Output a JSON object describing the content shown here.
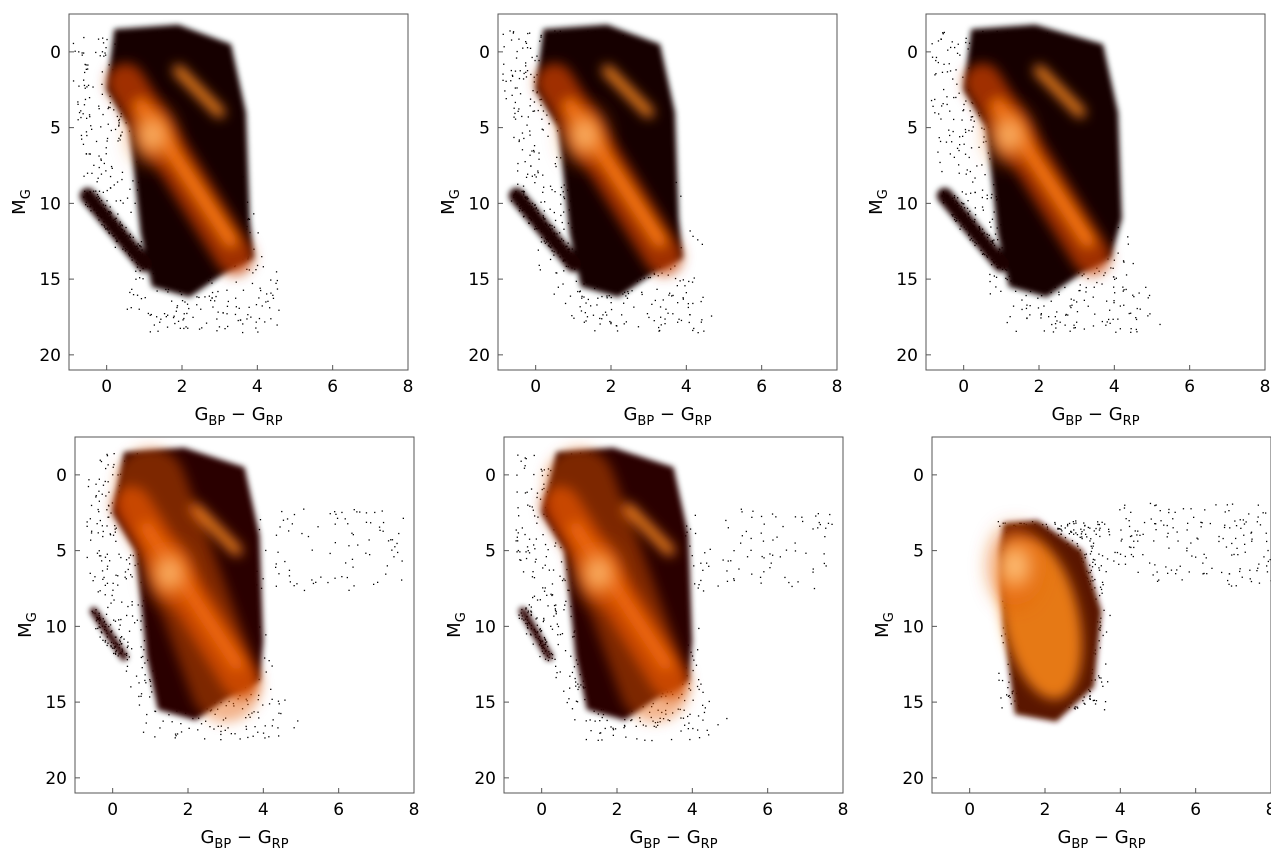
{
  "figure": {
    "background": "#ffffff",
    "colormap": "gist_heat (dark red-orange to white, density scale)",
    "point_color": "#000000"
  },
  "chart_data": [
    {
      "type": "heatmap",
      "row": 1,
      "col": 1,
      "title": "",
      "xlabel": "G_BP − G_RP",
      "xlabel_main": "G",
      "xlabel_sub1": "BP",
      "xlabel_mid": " − G",
      "xlabel_sub2": "RP",
      "ylabel": "M_G",
      "ylabel_main": "M",
      "ylabel_sub": "G",
      "xlim": [
        -1,
        8
      ],
      "ylim": [
        21,
        -2.5
      ],
      "y_inverted": true,
      "xticks": [
        0,
        2,
        4,
        6,
        8
      ],
      "yticks": [
        0,
        5,
        10,
        15,
        20
      ],
      "grid": false,
      "density_features": {
        "main_sequence": {
          "x": [
            0.2,
            3.6
          ],
          "y": [
            0,
            15
          ]
        },
        "red_clump": {
          "x": 2.0,
          "y": 1.5
        },
        "white_dwarf_sequence": {
          "x": [
            -0.5,
            1.0
          ],
          "y": [
            9.5,
            14
          ]
        },
        "peak": {
          "x": 1.2,
          "y": 5.5
        },
        "x_extent": [
          -0.9,
          4.6
        ],
        "y_extent": [
          -2,
          20.5
        ]
      }
    },
    {
      "type": "heatmap",
      "row": 1,
      "col": 2,
      "title": "",
      "xlabel": "G_BP − G_RP",
      "xlabel_main": "G",
      "xlabel_sub1": "BP",
      "xlabel_mid": " − G",
      "xlabel_sub2": "RP",
      "ylabel": "M_G",
      "ylabel_main": "M",
      "ylabel_sub": "G",
      "xlim": [
        -1,
        8
      ],
      "ylim": [
        21,
        -2.5
      ],
      "y_inverted": true,
      "xticks": [
        0,
        2,
        4,
        6,
        8
      ],
      "yticks": [
        0,
        5,
        10,
        15,
        20
      ],
      "grid": false,
      "density_features": {
        "main_sequence": {
          "x": [
            0.2,
            3.6
          ],
          "y": [
            0,
            15
          ]
        },
        "red_clump": {
          "x": 2.0,
          "y": 1.5
        },
        "white_dwarf_sequence": {
          "x": [
            -0.5,
            1.0
          ],
          "y": [
            9.5,
            14
          ]
        },
        "peak": {
          "x": 1.3,
          "y": 5.5
        },
        "x_extent": [
          -0.9,
          4.7
        ],
        "y_extent": [
          -2,
          20.5
        ]
      }
    },
    {
      "type": "heatmap",
      "row": 1,
      "col": 3,
      "title": "",
      "xlabel": "G_BP − G_RP",
      "xlabel_main": "G",
      "xlabel_sub1": "BP",
      "xlabel_mid": " − G",
      "xlabel_sub2": "RP",
      "ylabel": "M_G",
      "ylabel_main": "M",
      "ylabel_sub": "G",
      "xlim": [
        -1,
        8
      ],
      "ylim": [
        21,
        -2.5
      ],
      "y_inverted": true,
      "xticks": [
        0,
        2,
        4,
        6,
        8
      ],
      "yticks": [
        0,
        5,
        10,
        15,
        20
      ],
      "grid": false,
      "density_features": {
        "main_sequence": {
          "x": [
            0.2,
            4.0
          ],
          "y": [
            0,
            15
          ]
        },
        "red_clump": {
          "x": 2.1,
          "y": 1.5
        },
        "white_dwarf_sequence": {
          "x": [
            -0.5,
            1.0
          ],
          "y": [
            9.5,
            14
          ]
        },
        "peak": {
          "x": 1.2,
          "y": 5.5
        },
        "x_extent": [
          -0.9,
          6.0
        ],
        "y_extent": [
          -2,
          20.5
        ]
      }
    },
    {
      "type": "heatmap",
      "row": 2,
      "col": 1,
      "title": "",
      "xlabel": "G_BP − G_RP",
      "xlabel_main": "G",
      "xlabel_sub1": "BP",
      "xlabel_mid": " − G",
      "xlabel_sub2": "RP",
      "ylabel": "M_G",
      "ylabel_main": "M",
      "ylabel_sub": "G",
      "xlim": [
        -1,
        8
      ],
      "ylim": [
        21,
        -2.5
      ],
      "y_inverted": true,
      "xticks": [
        0,
        2,
        4,
        6,
        8
      ],
      "yticks": [
        0,
        5,
        10,
        15,
        20
      ],
      "grid": false,
      "density_features": {
        "main_sequence": {
          "x": [
            0.3,
            3.8
          ],
          "y": [
            0,
            14
          ]
        },
        "red_clump": {
          "x": 2.3,
          "y": 2.5
        },
        "white_dwarf_sequence": {
          "x": [
            -0.5,
            0.3
          ],
          "y": [
            9,
            12
          ]
        },
        "peak": {
          "x": 1.5,
          "y": 6.5
        },
        "x_extent": [
          -0.7,
          7.7
        ],
        "y_extent": [
          -1.5,
          20
        ]
      }
    },
    {
      "type": "heatmap",
      "row": 2,
      "col": 2,
      "title": "",
      "xlabel": "G_BP − G_RP",
      "xlabel_main": "G",
      "xlabel_sub1": "BP",
      "xlabel_mid": " − G",
      "xlabel_sub2": "RP",
      "ylabel": "M_G",
      "ylabel_main": "M",
      "ylabel_sub": "G",
      "xlim": [
        -1,
        8
      ],
      "ylim": [
        21,
        -2.5
      ],
      "y_inverted": true,
      "xticks": [
        0,
        2,
        4,
        6,
        8
      ],
      "yticks": [
        0,
        5,
        10,
        15,
        20
      ],
      "grid": false,
      "density_features": {
        "main_sequence": {
          "x": [
            0.4,
            3.8
          ],
          "y": [
            0,
            14
          ]
        },
        "red_clump": {
          "x": 2.4,
          "y": 2.5
        },
        "white_dwarf_sequence": {
          "x": [
            -0.5,
            0.2
          ],
          "y": [
            9,
            12
          ]
        },
        "peak": {
          "x": 1.5,
          "y": 6.5
        },
        "x_extent": [
          -0.7,
          7.7
        ],
        "y_extent": [
          -1.5,
          20
        ]
      }
    },
    {
      "type": "heatmap",
      "row": 2,
      "col": 3,
      "title": "",
      "xlabel": "G_BP − G_RP",
      "xlabel_main": "G",
      "xlabel_sub1": "BP",
      "xlabel_mid": " − G",
      "xlabel_sub2": "RP",
      "ylabel": "M_G",
      "ylabel_main": "M",
      "ylabel_sub": "G",
      "xlim": [
        -1,
        8
      ],
      "ylim": [
        21,
        -2.5
      ],
      "y_inverted": true,
      "xticks": [
        0,
        2,
        4,
        6,
        8
      ],
      "yticks": [
        0,
        5,
        10,
        15,
        20
      ],
      "grid": false,
      "density_features": {
        "main_sequence": {
          "x": [
            0.8,
            3.2
          ],
          "y": [
            3,
            15
          ]
        },
        "red_clump": null,
        "white_dwarf_sequence": null,
        "peak": {
          "x": 1.2,
          "y": 6
        },
        "x_extent": [
          0.7,
          8
        ],
        "y_extent": [
          1.5,
          19
        ]
      }
    }
  ]
}
